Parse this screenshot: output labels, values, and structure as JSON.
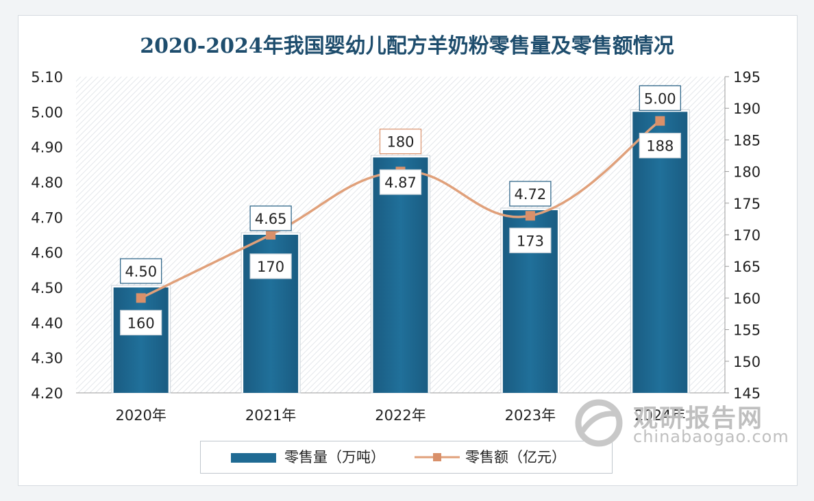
{
  "title": "2020-2024年我国婴幼儿配方羊奶粉零售量及零售额情况",
  "chart_data": {
    "type": "bar+line",
    "categories": [
      "2020年",
      "2021年",
      "2022年",
      "2023年",
      "2024年"
    ],
    "series": [
      {
        "name": "零售量（万吨）",
        "type": "bar",
        "axis": "left",
        "values": [
          4.5,
          4.65,
          4.87,
          4.72,
          5.0
        ],
        "labels": [
          "4.50",
          "4.65",
          "4.87",
          "4.72",
          "5.00"
        ],
        "color": "#1f6a93"
      },
      {
        "name": "零售额（亿元）",
        "type": "line",
        "axis": "right",
        "values": [
          160,
          170,
          180,
          173,
          188
        ],
        "labels": [
          "160",
          "170",
          "180",
          "173",
          "188"
        ],
        "color": "#e0a07a"
      }
    ],
    "left_axis": {
      "min": 4.2,
      "max": 5.1,
      "step": 0.1,
      "ticks": [
        "4.20",
        "4.30",
        "4.40",
        "4.50",
        "4.60",
        "4.70",
        "4.80",
        "4.90",
        "5.00",
        "5.10"
      ]
    },
    "right_axis": {
      "min": 145,
      "max": 195,
      "step": 5,
      "ticks": [
        "145",
        "150",
        "155",
        "160",
        "165",
        "170",
        "175",
        "180",
        "185",
        "190",
        "195"
      ]
    },
    "legend_position": "bottom"
  },
  "legend": {
    "bar_label": "零售量（万吨）",
    "line_label": "零售额（亿元）"
  },
  "watermark": {
    "cn": "观研报告网",
    "en": "chinabaogao.com"
  },
  "colors": {
    "bar": "#1f6a93",
    "line": "#e0a07a",
    "marker": "#d9906a",
    "title": "#1e4d6d"
  }
}
